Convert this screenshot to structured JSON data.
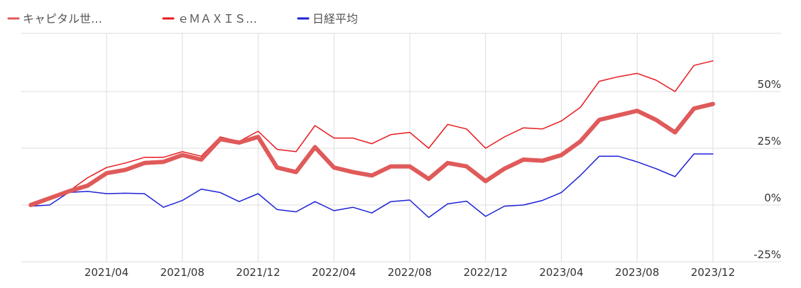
{
  "chart_data": {
    "type": "line",
    "title": "",
    "xlabel": "",
    "ylabel": "",
    "ylim": [
      -0.25,
      0.7
    ],
    "y_ticks": [
      {
        "value": 0.5,
        "label": "50%"
      },
      {
        "value": 0.25,
        "label": "25%"
      },
      {
        "value": 0.0,
        "label": "0%"
      },
      {
        "value": -0.25,
        "label": "-25%"
      }
    ],
    "x_ticks": [
      {
        "date": "2021-04",
        "label": "2021/04"
      },
      {
        "date": "2021-08",
        "label": "2021/08"
      },
      {
        "date": "2021-12",
        "label": "2021/12"
      },
      {
        "date": "2022-04",
        "label": "2022/04"
      },
      {
        "date": "2022-08",
        "label": "2022/08"
      },
      {
        "date": "2022-12",
        "label": "2022/12"
      },
      {
        "date": "2023-04",
        "label": "2023/04"
      },
      {
        "date": "2023-08",
        "label": "2023/08"
      },
      {
        "date": "2023-12",
        "label": "2023/12"
      }
    ],
    "x_range": [
      "2020-12",
      "2024-01"
    ],
    "grid": true,
    "legend_position": "top-left",
    "x": [
      "2020-12",
      "2021-01",
      "2021-02",
      "2021-03",
      "2021-04",
      "2021-05",
      "2021-06",
      "2021-07",
      "2021-08",
      "2021-09",
      "2021-10",
      "2021-11",
      "2021-12",
      "2022-01",
      "2022-02",
      "2022-03",
      "2022-04",
      "2022-05",
      "2022-06",
      "2022-07",
      "2022-08",
      "2022-09",
      "2022-10",
      "2022-11",
      "2022-12",
      "2023-01",
      "2023-02",
      "2023-03",
      "2023-04",
      "2023-05",
      "2023-06",
      "2023-07",
      "2023-08",
      "2023-09",
      "2023-10",
      "2023-11",
      "2023-12"
    ],
    "series": [
      {
        "name": "キャピタル世…",
        "color": "#e05a5a",
        "values": [
          0.0,
          0.03,
          0.06,
          0.085,
          0.14,
          0.155,
          0.185,
          0.19,
          0.22,
          0.2,
          0.29,
          0.275,
          0.3,
          0.165,
          0.145,
          0.255,
          0.165,
          0.145,
          0.13,
          0.17,
          0.17,
          0.115,
          0.185,
          0.17,
          0.105,
          0.16,
          0.2,
          0.195,
          0.22,
          0.28,
          0.375,
          0.395,
          0.415,
          0.375,
          0.32,
          0.425,
          0.445
        ]
      },
      {
        "name": "ｅＭＡＸＩＳ…",
        "color": "#e8191e",
        "values": [
          0.0,
          0.025,
          0.06,
          0.12,
          0.165,
          0.185,
          0.21,
          0.21,
          0.235,
          0.215,
          0.3,
          0.28,
          0.325,
          0.245,
          0.235,
          0.35,
          0.295,
          0.295,
          0.27,
          0.31,
          0.32,
          0.25,
          0.355,
          0.335,
          0.25,
          0.3,
          0.34,
          0.335,
          0.37,
          0.43,
          0.545,
          0.565,
          0.58,
          0.55,
          0.5,
          0.615,
          0.635
        ]
      },
      {
        "name": "日経平均",
        "color": "#1e22d6",
        "values": [
          -0.005,
          0.0,
          0.055,
          0.06,
          0.05,
          0.052,
          0.05,
          -0.01,
          0.02,
          0.07,
          0.055,
          0.015,
          0.05,
          -0.02,
          -0.03,
          0.015,
          -0.025,
          -0.01,
          -0.035,
          0.015,
          0.022,
          -0.055,
          0.005,
          0.017,
          -0.05,
          -0.005,
          0.0,
          0.02,
          0.055,
          0.13,
          0.215,
          0.215,
          0.19,
          0.16,
          0.125,
          0.225,
          0.225
        ]
      }
    ]
  }
}
